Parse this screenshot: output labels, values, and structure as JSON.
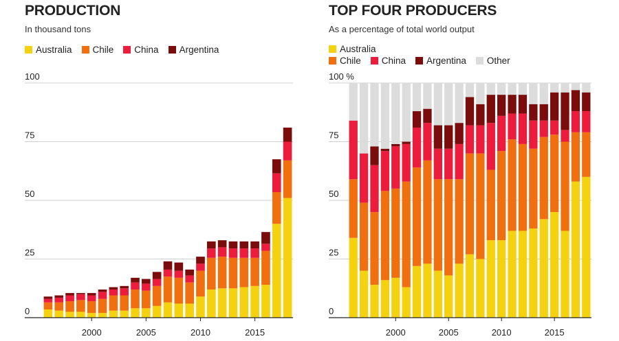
{
  "colors": {
    "Australia": "#f5d20f",
    "Chile": "#f0700f",
    "China": "#ec1c3c",
    "Argentina": "#7a0c0c",
    "Other": "#dcdcdc",
    "grid": "#cfcfcf",
    "axis": "#222222"
  },
  "chart_data": [
    {
      "type": "bar",
      "stacked": true,
      "title": "PRODUCTION",
      "subtitle": "In thousand tons",
      "legend": [
        "Australia",
        "Chile",
        "China",
        "Argentina"
      ],
      "legend_placement": "top-left",
      "ylim": [
        0,
        100
      ],
      "yticks": [
        0,
        25,
        50,
        75,
        100
      ],
      "ytick_labels": [
        "0",
        "25",
        "50",
        "75",
        "100"
      ],
      "xlim": [
        1995.5,
        2018.5
      ],
      "xticks": [
        2000,
        2005,
        2010,
        2015
      ],
      "grid": true,
      "x": [
        1996,
        1997,
        1998,
        1999,
        2000,
        2001,
        2002,
        2003,
        2004,
        2005,
        2006,
        2007,
        2008,
        2009,
        2010,
        2011,
        2012,
        2013,
        2014,
        2015,
        2016,
        2017,
        2018
      ],
      "series": [
        {
          "name": "Australia",
          "values": [
            3.5,
            3,
            2.5,
            2.5,
            2,
            2,
            3,
            3,
            4,
            4,
            5,
            6.5,
            6,
            6,
            9,
            12,
            12.5,
            12.5,
            13,
            13.5,
            14,
            40,
            51
          ]
        },
        {
          "name": "Chile",
          "values": [
            3,
            3.5,
            4.5,
            5,
            5,
            6,
            6.5,
            6.5,
            8,
            7.5,
            8.5,
            11,
            11,
            9,
            11,
            13.5,
            13.5,
            13,
            12.5,
            12,
            14.5,
            13.5,
            16
          ]
        },
        {
          "name": "China",
          "values": [
            1.5,
            2,
            2.5,
            2.5,
            2.5,
            3,
            2.5,
            3,
            3,
            3,
            3,
            3,
            3,
            3,
            3,
            4,
            4,
            4,
            4,
            4,
            3,
            8,
            8
          ]
        },
        {
          "name": "Argentina",
          "values": [
            1,
            1,
            1,
            0.5,
            1,
            1,
            1,
            1,
            2,
            2,
            3,
            3.5,
            3.5,
            2.5,
            3,
            3,
            3,
            3,
            3,
            3,
            5,
            6,
            6
          ]
        }
      ]
    },
    {
      "type": "bar",
      "stacked": true,
      "title": "TOP FOUR PRODUCERS",
      "subtitle": "As a percentage of total world output",
      "legend": [
        "Australia",
        "Chile",
        "China",
        "Argentina",
        "Other"
      ],
      "legend_placement": "top-left",
      "ylim": [
        0,
        100
      ],
      "yticks": [
        0,
        25,
        50,
        75,
        100
      ],
      "ytick_labels": [
        "0",
        "25",
        "50",
        "75",
        "100 %"
      ],
      "xlim": [
        1995.5,
        2018.5
      ],
      "xticks": [
        2000,
        2005,
        2010,
        2015
      ],
      "grid": true,
      "x": [
        1996,
        1997,
        1998,
        1999,
        2000,
        2001,
        2002,
        2003,
        2004,
        2005,
        2006,
        2007,
        2008,
        2009,
        2010,
        2011,
        2012,
        2013,
        2014,
        2015,
        2016,
        2017,
        2018
      ],
      "series": [
        {
          "name": "Australia",
          "values": [
            34,
            20,
            14,
            16,
            17,
            13,
            22,
            23,
            20,
            18,
            23,
            27,
            25,
            33,
            33,
            37,
            37,
            38,
            42,
            45,
            37,
            58,
            60
          ]
        },
        {
          "name": "Chile",
          "values": [
            25,
            29,
            31,
            38,
            38,
            45,
            42,
            44,
            39,
            41,
            36,
            43,
            45,
            30,
            38,
            39,
            37,
            34,
            35,
            33,
            38,
            21,
            19
          ]
        },
        {
          "name": "China",
          "values": [
            25,
            21,
            20,
            17,
            18,
            16,
            17,
            16,
            13,
            13,
            15,
            12,
            12,
            20,
            15,
            11,
            13,
            12,
            7,
            6,
            5,
            9,
            9
          ]
        },
        {
          "name": "Argentina",
          "values": [
            0,
            0,
            8,
            1,
            1,
            1,
            7,
            6,
            10,
            10,
            9,
            12,
            9,
            12,
            9,
            8,
            8,
            7,
            7,
            12,
            16,
            9,
            8
          ]
        },
        {
          "name": "Other",
          "values": [
            16,
            30,
            27,
            28,
            26,
            25,
            12,
            11,
            18,
            18,
            17,
            6,
            9,
            5,
            5,
            5,
            5,
            9,
            9,
            4,
            4,
            3,
            4
          ]
        }
      ]
    }
  ]
}
